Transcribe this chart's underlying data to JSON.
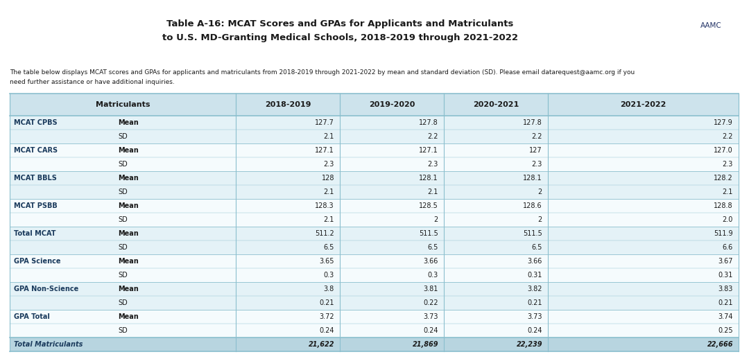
{
  "title_line1": "Table A-16: MCAT Scores and GPAs for Applicants and Matriculants",
  "title_line2": "to U.S. MD-Granting Medical Schools, 2018-2019 through 2021-2022",
  "description_line1": "The table below displays MCAT scores and GPAs for applicants and matriculants from 2018-2019 through 2021-2022 by mean and standard deviation (SD). Please email datarequest@aamc.org if you",
  "description_line2": "need further assistance or have additional inquiries.",
  "col_headers": [
    "",
    "Matriculants",
    "2018-2019",
    "2019-2020",
    "2020-2021",
    "2021-2022"
  ],
  "rows": [
    {
      "cat": "MCAT CPBS",
      "sub": "Mean",
      "vals": [
        "127.7",
        "127.8",
        "127.8",
        "127.9"
      ]
    },
    {
      "cat": "",
      "sub": "SD",
      "vals": [
        "2.1",
        "2.2",
        "2.2",
        "2.2"
      ]
    },
    {
      "cat": "MCAT CARS",
      "sub": "Mean",
      "vals": [
        "127.1",
        "127.1",
        "127",
        "127.0"
      ]
    },
    {
      "cat": "",
      "sub": "SD",
      "vals": [
        "2.3",
        "2.3",
        "2.3",
        "2.3"
      ]
    },
    {
      "cat": "MCAT BBLS",
      "sub": "Mean",
      "vals": [
        "128",
        "128.1",
        "128.1",
        "128.2"
      ]
    },
    {
      "cat": "",
      "sub": "SD",
      "vals": [
        "2.1",
        "2.1",
        "2",
        "2.1"
      ]
    },
    {
      "cat": "MCAT PSBB",
      "sub": "Mean",
      "vals": [
        "128.3",
        "128.5",
        "128.6",
        "128.8"
      ]
    },
    {
      "cat": "",
      "sub": "SD",
      "vals": [
        "2.1",
        "2",
        "2",
        "2.0"
      ]
    },
    {
      "cat": "Total MCAT",
      "sub": "Mean",
      "vals": [
        "511.2",
        "511.5",
        "511.5",
        "511.9"
      ]
    },
    {
      "cat": "",
      "sub": "SD",
      "vals": [
        "6.5",
        "6.5",
        "6.5",
        "6.6"
      ]
    },
    {
      "cat": "GPA Science",
      "sub": "Mean",
      "vals": [
        "3.65",
        "3.66",
        "3.66",
        "3.67"
      ]
    },
    {
      "cat": "",
      "sub": "SD",
      "vals": [
        "0.3",
        "0.3",
        "0.31",
        "0.31"
      ]
    },
    {
      "cat": "GPA Non-Science",
      "sub": "Mean",
      "vals": [
        "3.8",
        "3.81",
        "3.82",
        "3.83"
      ]
    },
    {
      "cat": "",
      "sub": "SD",
      "vals": [
        "0.21",
        "0.22",
        "0.21",
        "0.21"
      ]
    },
    {
      "cat": "GPA Total",
      "sub": "Mean",
      "vals": [
        "3.72",
        "3.73",
        "3.73",
        "3.74"
      ]
    },
    {
      "cat": "",
      "sub": "SD",
      "vals": [
        "0.24",
        "0.24",
        "0.24",
        "0.25"
      ]
    }
  ],
  "footer_row": {
    "cat": "Total Matriculants",
    "vals": [
      "21,622",
      "21,869",
      "22,239",
      "22,666"
    ]
  },
  "header_bg": "#cde3ec",
  "row_bg_even": "#e4f2f7",
  "row_bg_odd": "#f5fbfd",
  "footer_bg": "#b8d5e0",
  "border_color": "#8bbfce",
  "cat_color": "#1a3a5c",
  "text_color": "#1a1a1a",
  "bg_color": "#ffffff",
  "title_color": "#1a1a1a",
  "desc_color": "#1a1a1a"
}
